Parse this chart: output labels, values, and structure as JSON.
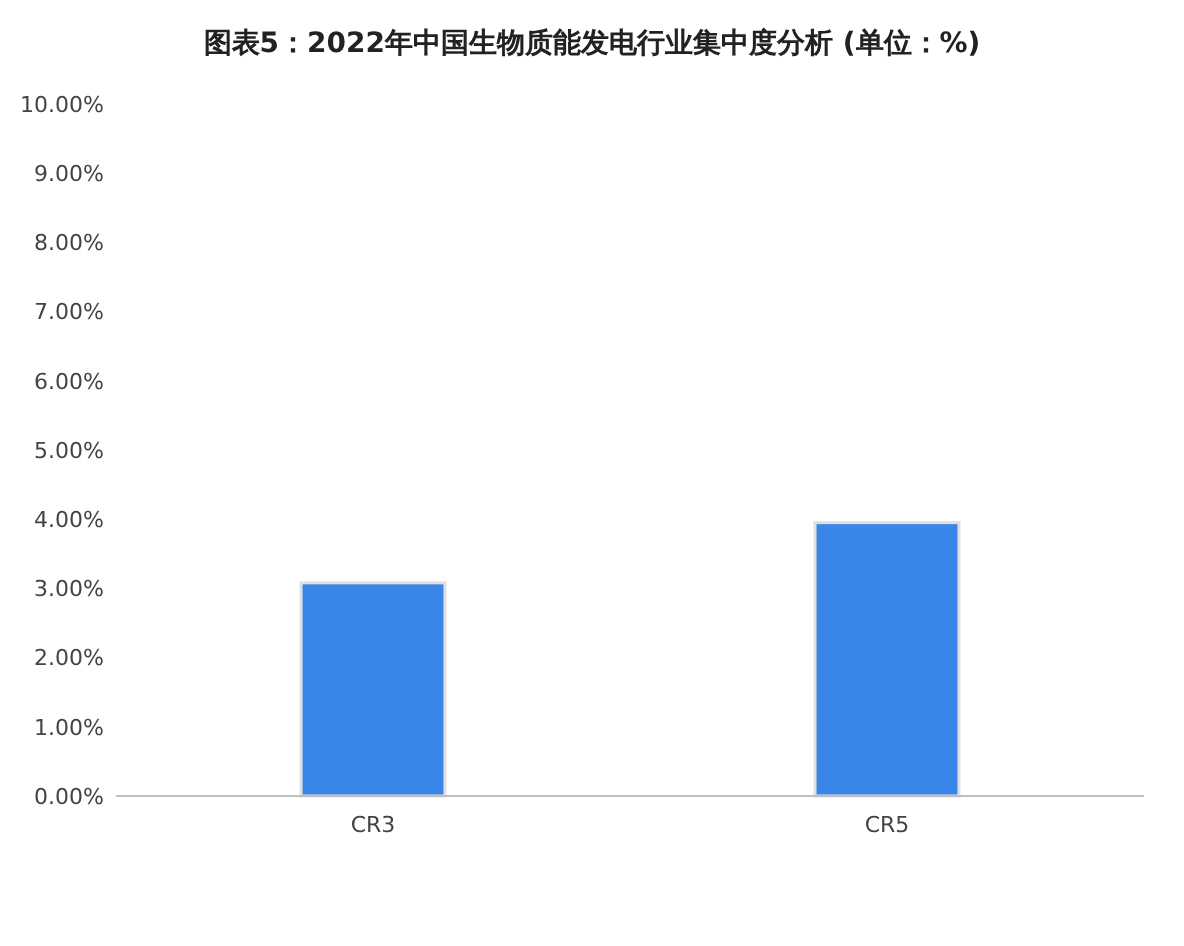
{
  "chart_data": {
    "type": "bar",
    "title": "图表5：2022年中国生物质能发电行业集中度分析 (单位：%)",
    "categories": [
      "CR3",
      "CR5"
    ],
    "values": [
      3.08,
      3.95
    ],
    "color": "#3a86e8",
    "ylim": [
      0,
      10
    ],
    "yticks": [
      {
        "value": 0,
        "label": "0.00%"
      },
      {
        "value": 1,
        "label": "1.00%"
      },
      {
        "value": 2,
        "label": "2.00%"
      },
      {
        "value": 3,
        "label": "3.00%"
      },
      {
        "value": 4,
        "label": "4.00%"
      },
      {
        "value": 5,
        "label": "5.00%"
      },
      {
        "value": 6,
        "label": "6.00%"
      },
      {
        "value": 7,
        "label": "7.00%"
      },
      {
        "value": 8,
        "label": "8.00%"
      },
      {
        "value": 9,
        "label": "9.00%"
      },
      {
        "value": 10,
        "label": "10.00%"
      }
    ]
  }
}
